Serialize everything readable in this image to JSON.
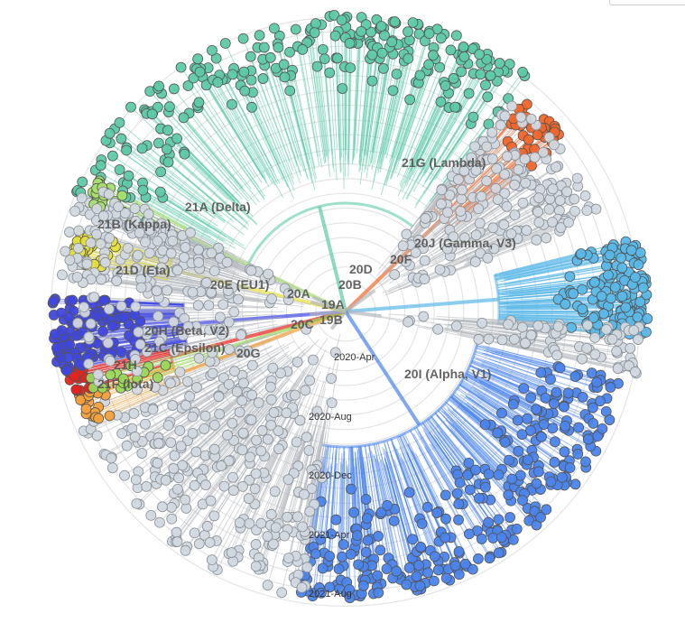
{
  "time_ticks": [
    "2020-Apr",
    "2020-Aug",
    "2020-Dec",
    "2021-Apr",
    "2021-Aug"
  ],
  "clades": [
    {
      "key": "delta",
      "label": "21A (Delta)",
      "color": "#5dc9a8"
    },
    {
      "key": "kappa",
      "label": "21B (Kappa)",
      "color": "#a8e06a"
    },
    {
      "key": "eta",
      "label": "21D (Eta)",
      "color": "#e6e03a"
    },
    {
      "key": "eu1",
      "label": "20E (EU1)",
      "color": "#c8ced6"
    },
    {
      "key": "a20",
      "label": "20A",
      "color": "#c8ced6"
    },
    {
      "key": "a19",
      "label": "19A",
      "color": "#c8ced6"
    },
    {
      "key": "b19",
      "label": "19B",
      "color": "#c8ced6"
    },
    {
      "key": "c20",
      "label": "20C",
      "color": "#c8ced6"
    },
    {
      "key": "beta",
      "label": "20H (Beta, V2)",
      "color": "#3f47e0"
    },
    {
      "key": "epsilon",
      "label": "21C (Epsilon)",
      "color": "#9ad85a"
    },
    {
      "key": "g20",
      "label": "20G",
      "color": "#c8ced6"
    },
    {
      "key": "h21",
      "label": "21H",
      "color": "#c8ced6"
    },
    {
      "key": "iota",
      "label": "21F (Iota)",
      "color": "#e8221e"
    },
    {
      "key": "d20",
      "label": "20D",
      "color": "#c8ced6"
    },
    {
      "key": "b20",
      "label": "20B",
      "color": "#c8ced6"
    },
    {
      "key": "f20",
      "label": "20F",
      "color": "#c8ced6"
    },
    {
      "key": "gamma",
      "label": "20J (Gamma, V3)",
      "color": "#5ab8e8"
    },
    {
      "key": "lambda",
      "label": "21G (Lambda)",
      "color": "#f2662a"
    },
    {
      "key": "alpha",
      "label": "20I (Alpha, V1)",
      "color": "#4a84ec"
    },
    {
      "key": "other_orange",
      "label": "",
      "color": "#f5a03a"
    }
  ],
  "colors": {
    "branch_gray": "#b4b8bd",
    "ring": "#e4e4e4",
    "tip_gray": "#d2d8df",
    "tip_stroke": "#8a9096"
  }
}
